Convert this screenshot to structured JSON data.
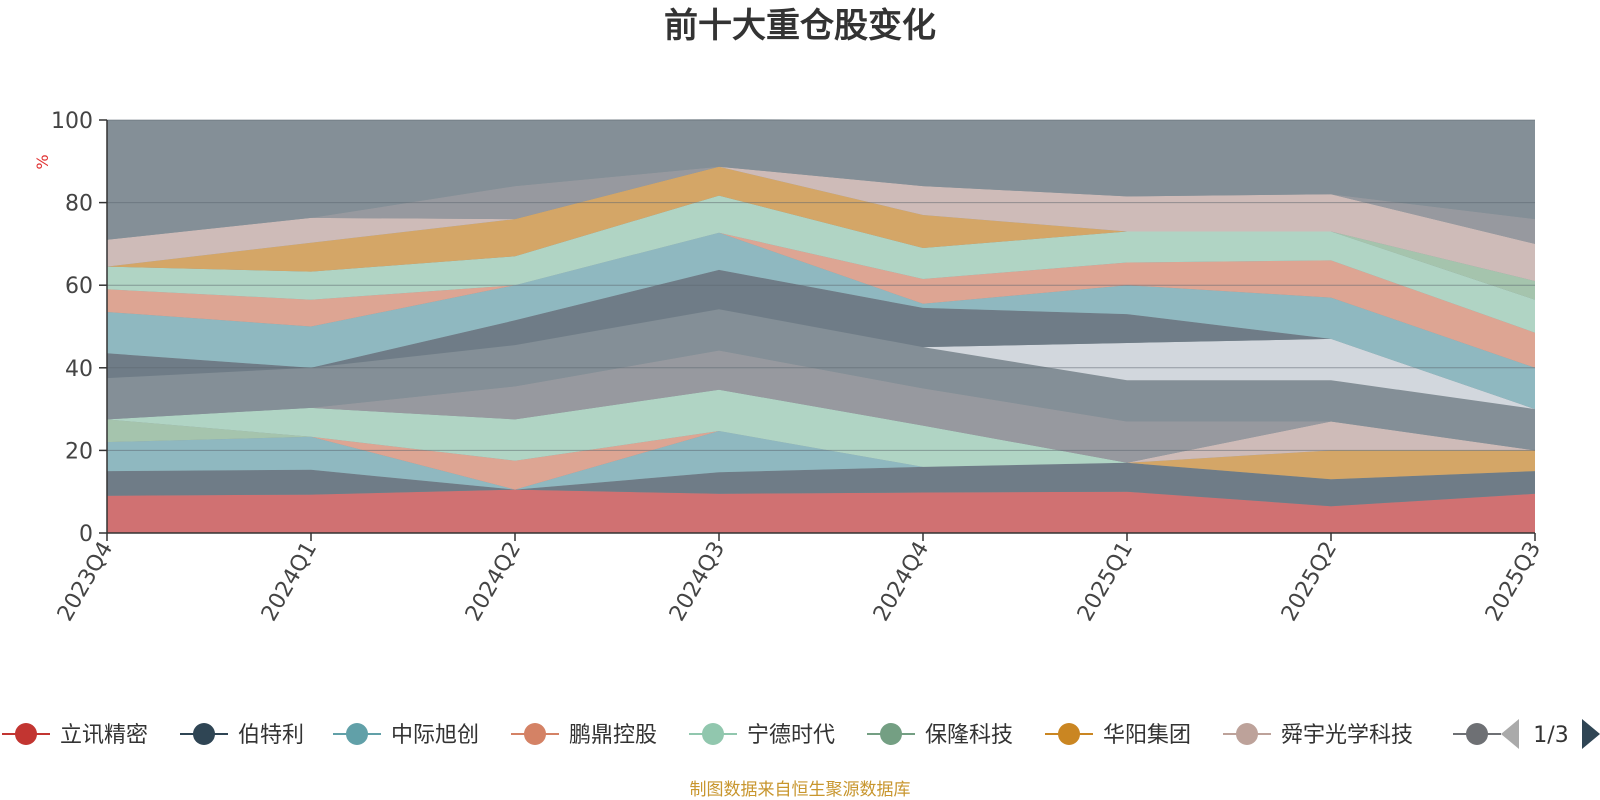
{
  "chart_data": {
    "type": "area",
    "title": "前十大重仓股变化",
    "ylabel": "%",
    "xlabel": "",
    "ylim": [
      0,
      100
    ],
    "yticks": [
      0,
      20,
      40,
      60,
      80,
      100
    ],
    "grid": true,
    "categories": [
      "2023Q4",
      "2024Q1",
      "2024Q2",
      "2024Q3",
      "2024Q4",
      "2025Q1",
      "2025Q2",
      "2025Q3"
    ],
    "series": [
      {
        "name": "立讯精密",
        "color": "#d47070",
        "values": [
          9.0,
          9.3,
          10.5,
          9.5,
          9.8,
          10.0,
          6.5,
          9.5
        ]
      },
      {
        "name": "",
        "color": "#6e7b86",
        "values": [
          6.0,
          6.0,
          0.0,
          5.2,
          6.2,
          7.0,
          6.5,
          5.5
        ]
      },
      {
        "name": "",
        "color": "#8fbac2",
        "values": [
          7.0,
          8.0,
          0.0,
          10.0,
          0.0,
          0.0,
          0.0,
          0.0
        ]
      },
      {
        "name": "",
        "color": "#e2a692",
        "values": [
          0.0,
          0.0,
          7.0,
          0.0,
          0.0,
          0.0,
          0.0,
          0.0
        ]
      },
      {
        "name": "",
        "color": "#d8a864",
        "values": [
          0.0,
          0.0,
          0.0,
          0.0,
          0.0,
          0.0,
          7.0,
          5.0
        ]
      },
      {
        "name": "",
        "color": "#d2beb9",
        "values": [
          0.0,
          0.0,
          0.0,
          0.0,
          0.0,
          0.0,
          7.0,
          0.0
        ]
      },
      {
        "name": "",
        "color": "#a6c7ae",
        "values": [
          5.5,
          0.0,
          0.0,
          0.0,
          0.0,
          0.0,
          0.0,
          0.0
        ]
      },
      {
        "name": "",
        "color": "#b2d8c6",
        "values": [
          0.0,
          7.0,
          10.0,
          10.0,
          10.0,
          0.0,
          0.0,
          0.0
        ]
      },
      {
        "name": "",
        "color": "#989a9f",
        "values": [
          0.0,
          0.0,
          8.0,
          9.5,
          9.0,
          10.0,
          0.0,
          0.0
        ]
      },
      {
        "name": "",
        "color": "#848f97",
        "values": [
          10.0,
          9.7,
          10.0,
          10.0,
          10.0,
          10.0,
          10.0,
          10.0
        ]
      },
      {
        "name": "",
        "color": "#d6dbe0",
        "values": [
          0.0,
          0.0,
          0.0,
          0.0,
          0.0,
          9.0,
          10.0,
          0.0
        ]
      },
      {
        "name": "",
        "color": "#6e7b86",
        "values": [
          6.0,
          0.0,
          6.0,
          9.5,
          9.5,
          7.0,
          0.0,
          0.0
        ]
      },
      {
        "name": "",
        "color": "#d47070",
        "values": [
          0.0,
          0.0,
          0.0,
          0.0,
          0.0,
          0.0,
          0.0,
          0.0
        ]
      },
      {
        "name": "",
        "color": "#8fbac2",
        "values": [
          10.0,
          10.0,
          8.5,
          9.0,
          1.0,
          7.0,
          10.0,
          10.0
        ]
      },
      {
        "name": "",
        "color": "#e2a692",
        "values": [
          5.5,
          6.5,
          0.0,
          0.0,
          6.0,
          5.5,
          9.0,
          8.5
        ]
      },
      {
        "name": "",
        "color": "#b2d8c6",
        "values": [
          5.5,
          6.8,
          7.0,
          9.0,
          7.5,
          7.5,
          7.0,
          8.0
        ]
      },
      {
        "name": "",
        "color": "#a6c7ae",
        "values": [
          0.0,
          0.0,
          0.0,
          0.0,
          0.0,
          0.0,
          0.0,
          4.5
        ]
      },
      {
        "name": "",
        "color": "#d8a864",
        "values": [
          0.0,
          7.0,
          9.0,
          7.0,
          8.0,
          0.0,
          0.0,
          0.0
        ]
      },
      {
        "name": "",
        "color": "#d2beb9",
        "values": [
          6.5,
          6.0,
          0.0,
          0.0,
          7.0,
          8.5,
          9.0,
          9.0
        ]
      },
      {
        "name": "",
        "color": "#989a9f",
        "values": [
          0.0,
          0.0,
          8.0,
          0.0,
          0.0,
          0.0,
          0.0,
          6.0
        ]
      },
      {
        "name": "",
        "color": "#848f97",
        "values": [
          29.0,
          23.7,
          16.0,
          11.5,
          16.0,
          18.5,
          18.0,
          23.0
        ]
      }
    ],
    "legend": {
      "position": "bottom",
      "items": [
        {
          "name": "立讯精密",
          "color": "#c23531"
        },
        {
          "name": "伯特利",
          "color": "#2f4554"
        },
        {
          "name": "中际旭创",
          "color": "#61a0a8"
        },
        {
          "name": "鹏鼎控股",
          "color": "#d48265"
        },
        {
          "name": "宁德时代",
          "color": "#91c7ae"
        },
        {
          "name": "保隆科技",
          "color": "#749f83"
        },
        {
          "name": "华阳集团",
          "color": "#ca8622"
        },
        {
          "name": "舜宇光学科技",
          "color": "#bda29a"
        },
        {
          "name": "",
          "color": "#6e7074"
        }
      ],
      "page_text": "1/3"
    },
    "footer": "制图数据来自恒生聚源数据库"
  }
}
